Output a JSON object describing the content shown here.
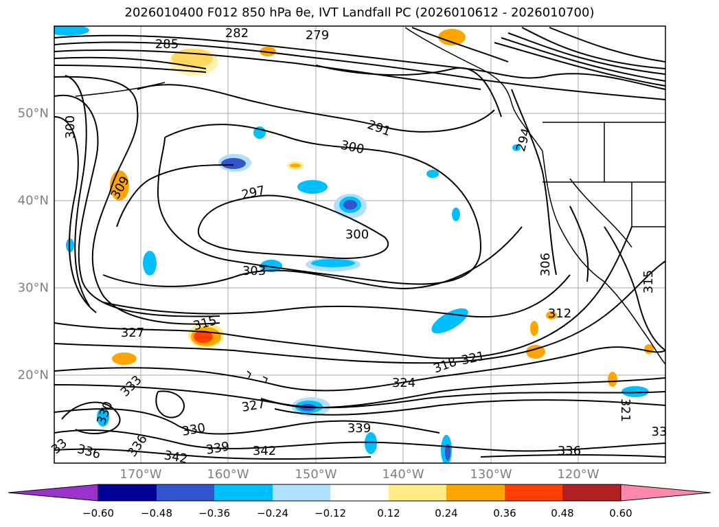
{
  "title": "2026010400 F012 850 hPa θe, IVT Landfall PC (2026010612 - 2026010700)",
  "map": {
    "lon_labels": [
      "170°W",
      "160°W",
      "150°W",
      "140°W",
      "130°W",
      "120°W"
    ],
    "lat_labels": [
      "50°N",
      "40°N",
      "30°N",
      "20°N"
    ],
    "contour_labels": [
      "285",
      "282",
      "279",
      "300",
      "309",
      "297",
      "300",
      "303",
      "300",
      "291",
      "294",
      "306",
      "315",
      "327",
      "312",
      "318",
      "321",
      "324",
      "333",
      "330",
      "327",
      "330",
      "336",
      "342",
      "339",
      "342",
      "336",
      "339",
      "321",
      "33",
      "336",
      "33",
      "315"
    ]
  },
  "colorbar": {
    "tick_labels": [
      "−0.60",
      "−0.48",
      "−0.36",
      "−0.24",
      "−0.12",
      "0.12",
      "0.24",
      "0.36",
      "0.48",
      "0.60"
    ],
    "colors": [
      "#9933cc",
      "#000099",
      "#3355cc",
      "#00bfff",
      "#b0e0ff",
      "#ffffff",
      "#ffee88",
      "#ffa500",
      "#ff4000",
      "#b22222",
      "#ff88aa"
    ]
  }
}
